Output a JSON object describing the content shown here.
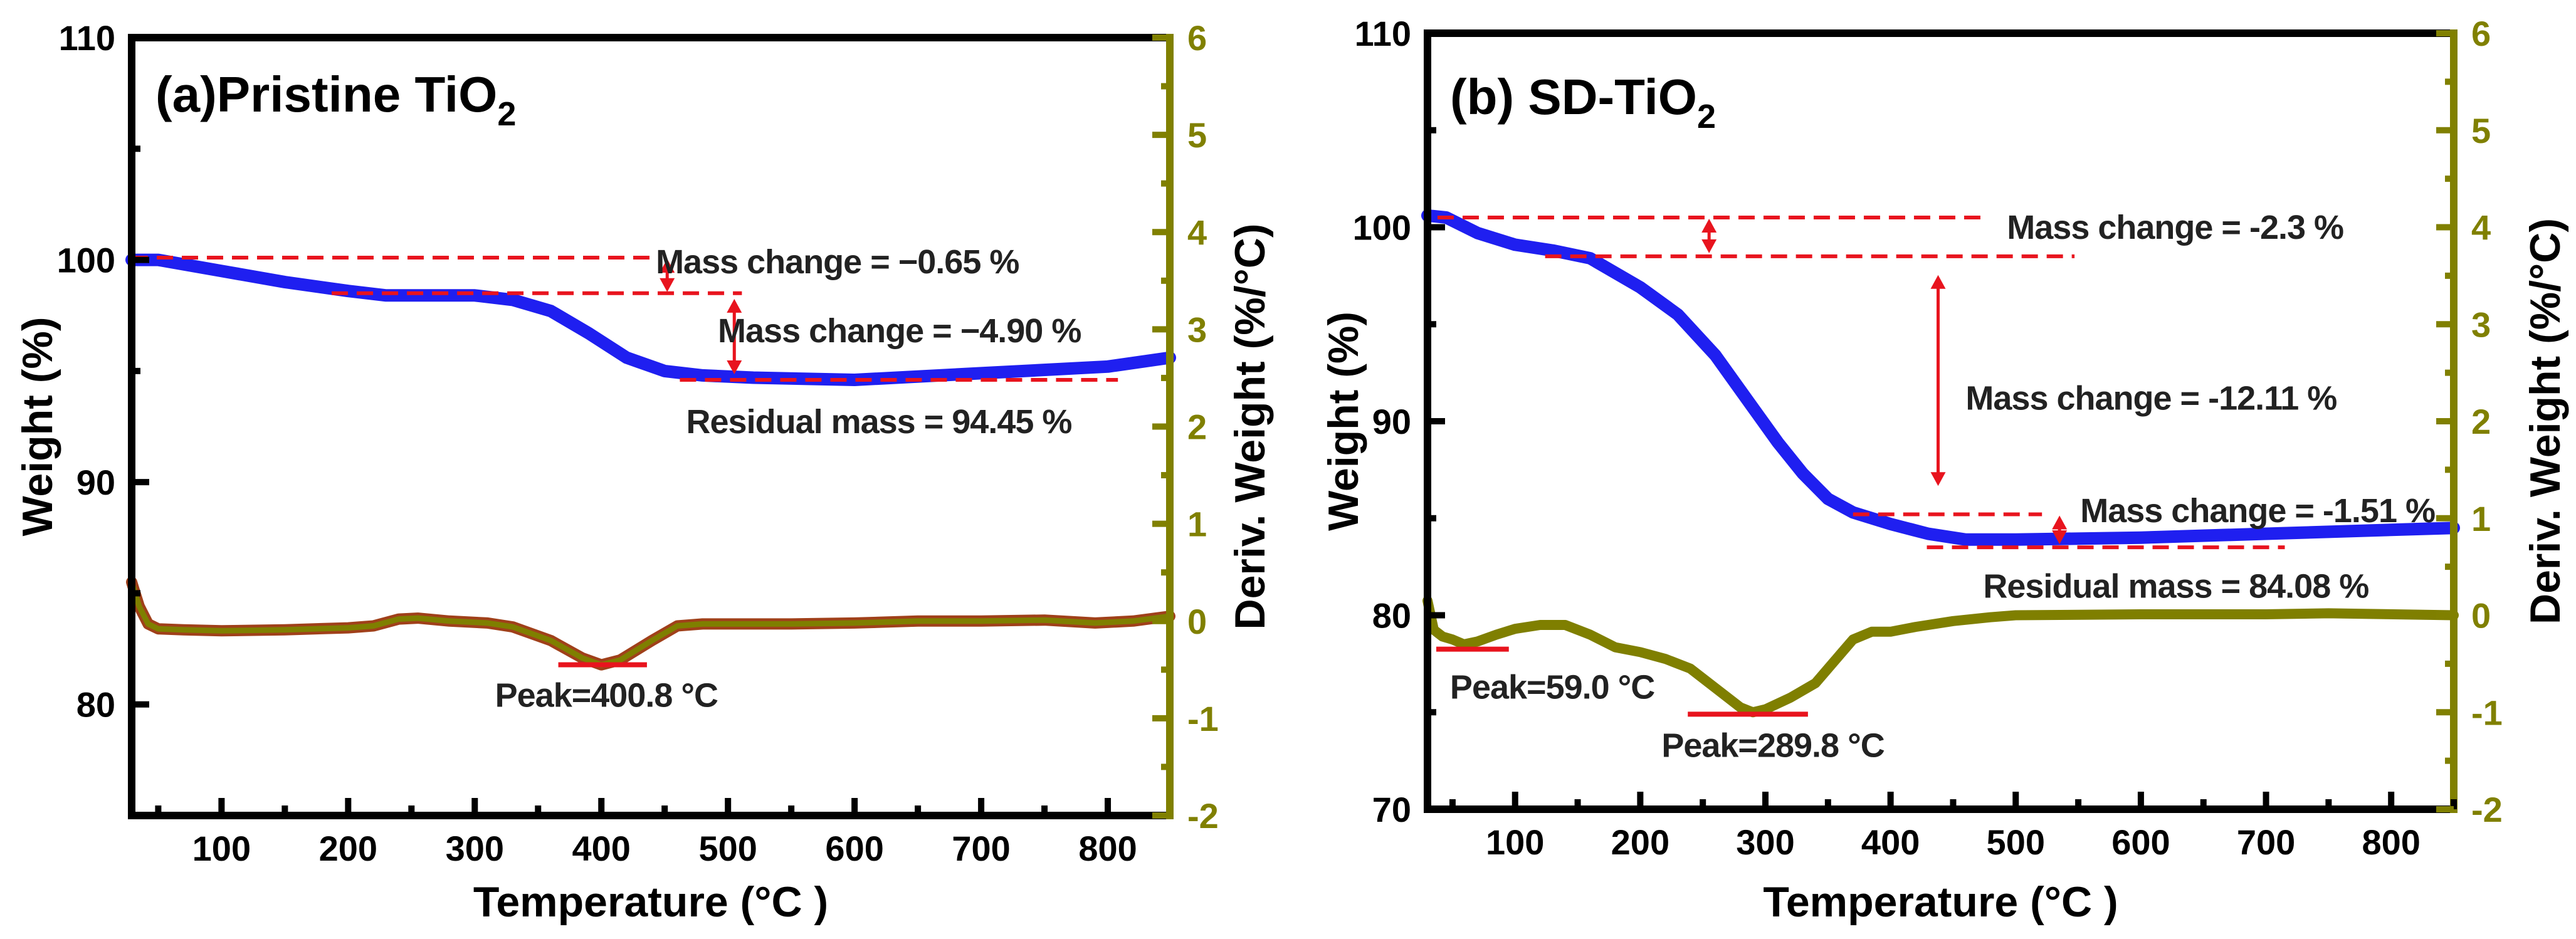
{
  "chart_data": [
    {
      "type": "line",
      "title": "(a)Pristine TiO2",
      "xlabel": "Temperature  (°C )",
      "ylabel": "Weight (%)",
      "y2label": "Deriv. Weight (%/°C)",
      "xlim": [
        29,
        849
      ],
      "ylim": [
        75,
        110
      ],
      "y2lim": [
        -2,
        6
      ],
      "xticks": [
        100,
        200,
        300,
        400,
        500,
        600,
        700,
        800
      ],
      "yticks": [
        80,
        90,
        100,
        110
      ],
      "y2ticks": [
        -2,
        -1,
        0,
        1,
        2,
        3,
        4,
        5,
        6
      ],
      "grid": false,
      "colors": {
        "weight": "#1f1ff0",
        "deriv": "#7f7f00",
        "deriv_edge": "#a0401a",
        "annotation": "#e8141e",
        "right_axis": "#808000"
      },
      "series": [
        {
          "axis": "left",
          "role": "weight",
          "x": [
            29,
            50,
            100,
            150,
            200,
            230,
            260,
            300,
            330,
            360,
            390,
            420,
            450,
            480,
            520,
            600,
            700,
            800,
            849
          ],
          "y": [
            100.0,
            100.0,
            99.5,
            99.0,
            98.6,
            98.4,
            98.4,
            98.4,
            98.2,
            97.7,
            96.7,
            95.6,
            95.0,
            94.8,
            94.7,
            94.6,
            94.9,
            95.2,
            95.6
          ]
        },
        {
          "axis": "right",
          "role": "deriv",
          "x": [
            29,
            35,
            42,
            50,
            70,
            100,
            150,
            200,
            220,
            240,
            255,
            280,
            310,
            330,
            360,
            385,
            400,
            415,
            440,
            460,
            480,
            550,
            600,
            650,
            700,
            750,
            790,
            820,
            849
          ],
          "y": [
            0.4,
            0.15,
            -0.03,
            -0.08,
            -0.09,
            -0.1,
            -0.09,
            -0.07,
            -0.05,
            0.02,
            0.03,
            0.0,
            -0.02,
            -0.06,
            -0.2,
            -0.38,
            -0.45,
            -0.4,
            -0.2,
            -0.05,
            -0.03,
            -0.03,
            -0.02,
            0.0,
            0.0,
            0.01,
            -0.02,
            0.0,
            0.05
          ]
        }
      ],
      "annotations": {
        "dashed_lines": [
          {
            "axis": "left",
            "y": 100.1,
            "x": [
              29,
              443
            ]
          },
          {
            "axis": "left",
            "y": 98.5,
            "x": [
              187,
              511
            ]
          },
          {
            "axis": "left",
            "y": 94.6,
            "x": [
              462,
              808
            ]
          }
        ],
        "arrows": [
          {
            "x": 452,
            "y": [
              100.1,
              98.5
            ]
          },
          {
            "x": 505,
            "y": [
              98.3,
              94.8
            ]
          }
        ],
        "peak_lines": [
          {
            "y2": -0.45,
            "x": [
              366,
              436
            ]
          }
        ],
        "labels": [
          {
            "text": "Mass change = −0.65 %",
            "x": 443,
            "y": 99.4,
            "anchor": "start"
          },
          {
            "text": "Mass change = −4.90 %",
            "x": 492,
            "y": 96.3,
            "anchor": "start"
          },
          {
            "text": "Residual mass = 94.45 %",
            "x": 467,
            "y": 92.2,
            "anchor": "start"
          },
          {
            "text": "Peak=400.8 °C",
            "x": 404,
            "axis": "right",
            "y2": -0.88,
            "anchor": "middle"
          }
        ]
      }
    },
    {
      "type": "line",
      "title": "(b) SD-TiO2",
      "xlabel": "Temperature  (°C )",
      "ylabel": "Weight (%)",
      "y2label": "Deriv. Weight (%/°C)",
      "xlim": [
        30,
        850
      ],
      "ylim": [
        70,
        110
      ],
      "y2lim": [
        -2,
        6
      ],
      "xticks": [
        100,
        200,
        300,
        400,
        500,
        600,
        700,
        800
      ],
      "yticks": [
        70,
        80,
        90,
        100,
        110
      ],
      "y2ticks": [
        -2,
        -1,
        0,
        1,
        2,
        3,
        4,
        5,
        6
      ],
      "grid": false,
      "colors": {
        "weight": "#1f1ff0",
        "deriv": "#7f7f00",
        "annotation": "#e8141e",
        "right_axis": "#808000"
      },
      "series": [
        {
          "axis": "left",
          "role": "weight",
          "x": [
            30,
            45,
            70,
            100,
            130,
            160,
            200,
            230,
            260,
            290,
            310,
            330,
            350,
            370,
            400,
            430,
            460,
            500,
            600,
            700,
            850
          ],
          "y": [
            100.6,
            100.5,
            99.7,
            99.1,
            98.8,
            98.4,
            96.9,
            95.5,
            93.4,
            90.7,
            88.9,
            87.3,
            86.0,
            85.3,
            84.7,
            84.2,
            83.9,
            83.9,
            84.0,
            84.2,
            84.5
          ]
        },
        {
          "axis": "right",
          "role": "deriv",
          "x": [
            30,
            35,
            42,
            50,
            59,
            70,
            85,
            100,
            120,
            140,
            160,
            180,
            200,
            220,
            240,
            260,
            280,
            290,
            300,
            320,
            340,
            360,
            370,
            385,
            400,
            420,
            450,
            480,
            500,
            600,
            700,
            750,
            850
          ],
          "y": [
            0.15,
            -0.15,
            -0.22,
            -0.25,
            -0.3,
            -0.27,
            -0.2,
            -0.14,
            -0.1,
            -0.1,
            -0.2,
            -0.33,
            -0.38,
            -0.45,
            -0.55,
            -0.75,
            -0.95,
            -1.0,
            -0.97,
            -0.85,
            -0.7,
            -0.4,
            -0.25,
            -0.17,
            -0.17,
            -0.12,
            -0.06,
            -0.02,
            0.0,
            0.01,
            0.01,
            0.02,
            0.0
          ]
        }
      ],
      "annotations": {
        "dashed_lines": [
          {
            "axis": "left",
            "y": 100.5,
            "x": [
              38,
              472
            ]
          },
          {
            "axis": "left",
            "y": 98.5,
            "x": [
              124,
              547
            ]
          },
          {
            "axis": "left",
            "y": 85.2,
            "x": [
              370,
              521
            ]
          },
          {
            "axis": "left",
            "y": 83.5,
            "x": [
              429,
              715
            ]
          }
        ],
        "arrows": [
          {
            "x": 255,
            "y": [
              100.5,
              98.6
            ]
          },
          {
            "x": 438,
            "y": [
              97.6,
              86.6
            ]
          },
          {
            "x": 535,
            "y": [
              85.2,
              83.6
            ]
          }
        ],
        "peak_lines": [
          {
            "y2": -0.35,
            "x": [
              37,
              95
            ]
          },
          {
            "y2": -1.02,
            "x": [
              238,
              334
            ]
          }
        ],
        "labels": [
          {
            "text": "Mass change = -2.3 %",
            "x": 493,
            "y": 99.4,
            "anchor": "start"
          },
          {
            "text": "Mass change = -12.11 %",
            "x": 460,
            "y": 90.6,
            "anchor": "start"
          },
          {
            "text": "Mass change = -1.51 %",
            "x": 556,
            "y": 84.8,
            "anchor": "start"
          },
          {
            "text": "Residual mass = 84.08 %",
            "x": 474,
            "y": 80.9,
            "anchor": "start"
          },
          {
            "text": "Peak=59.0 °C",
            "x": 48,
            "axis": "right",
            "y2": -0.86,
            "anchor": "start"
          },
          {
            "text": "Peak=289.8 °C",
            "x": 217,
            "axis": "right",
            "y2": -1.46,
            "anchor": "start"
          }
        ]
      }
    }
  ]
}
